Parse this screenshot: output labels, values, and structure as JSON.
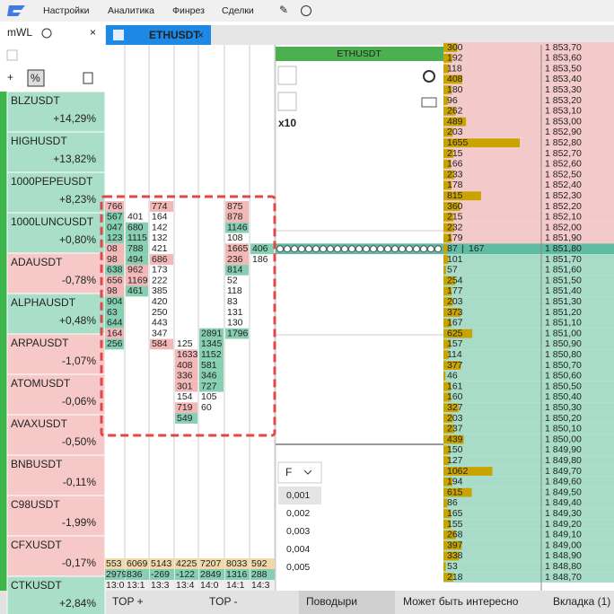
{
  "menu": {
    "items": [
      "Настройки",
      "Аналитика",
      "Финрез",
      "Сделки"
    ]
  },
  "watchlist": {
    "title": "mWL",
    "items": [
      {
        "symbol": "BLZUSDT",
        "change": "+14,29%"
      },
      {
        "symbol": "HIGHUSDT",
        "change": "+13,82%"
      },
      {
        "symbol": "1000PEPEUSDT",
        "change": "+8,23%"
      },
      {
        "symbol": "1000LUNCUSDT",
        "change": "+0,80%"
      },
      {
        "symbol": "ADAUSDT",
        "change": "-0,78%"
      },
      {
        "symbol": "ALPHAUSDT",
        "change": "+0,48%"
      },
      {
        "symbol": "ARPAUSDT",
        "change": "-1,07%"
      },
      {
        "symbol": "ATOMUSDT",
        "change": "-0,06%"
      },
      {
        "symbol": "AVAXUSDT",
        "change": "-0,50%"
      },
      {
        "symbol": "BNBUSDT",
        "change": "-0,11%"
      },
      {
        "symbol": "C98USDT",
        "change": "-1,99%"
      },
      {
        "symbol": "CFXUSDT",
        "change": "-0,17%"
      },
      {
        "symbol": "CTKUSDT",
        "change": "+2,84%"
      }
    ]
  },
  "tab": "ETHUSDT",
  "chart": {
    "title": "ETHUSDT",
    "zoom": "x10",
    "precision_mode": "F",
    "precisions": [
      "0,001",
      "0,002",
      "0,003",
      "0,004",
      "0,005"
    ]
  },
  "clusters": {
    "columns": [
      {
        "cells": [
          [
            "766",
            "sell"
          ],
          [
            "567",
            "buy"
          ],
          [
            "047",
            "buy"
          ],
          [
            "123",
            "buy"
          ],
          [
            "08",
            "sell"
          ],
          [
            "98",
            "sell"
          ],
          [
            "638",
            "buy"
          ],
          [
            "656",
            "sell"
          ],
          [
            "98",
            "sell"
          ],
          [
            "904",
            "buy"
          ],
          [
            "63",
            "buy"
          ],
          [
            "644",
            "buy"
          ],
          [
            "164",
            "sell"
          ],
          [
            "256",
            "buy"
          ]
        ]
      },
      {
        "cells": [
          [
            "401",
            "none"
          ],
          [
            "680",
            "buy"
          ],
          [
            "1115",
            "buy"
          ],
          [
            "788",
            "buy"
          ],
          [
            "494",
            "buy"
          ],
          [
            "962",
            "sell"
          ],
          [
            "1169",
            "sell"
          ],
          [
            "461",
            "buy"
          ]
        ]
      },
      {
        "cells": [
          [
            "774",
            "sell"
          ],
          [
            "164",
            "none"
          ],
          [
            "142",
            "none"
          ],
          [
            "132",
            "none"
          ],
          [
            "421",
            "none"
          ],
          [
            "686",
            "sell"
          ],
          [
            "173",
            "none"
          ],
          [
            "222",
            "none"
          ],
          [
            "385",
            "none"
          ],
          [
            "420",
            "none"
          ],
          [
            "250",
            "none"
          ],
          [
            "443",
            "none"
          ],
          [
            "347",
            "none"
          ],
          [
            "584",
            "sell"
          ]
        ]
      },
      {
        "cells": [
          [
            "125",
            "none"
          ],
          [
            "1633",
            "sell"
          ],
          [
            "408",
            "sell"
          ],
          [
            "336",
            "sell"
          ],
          [
            "301",
            "sell"
          ],
          [
            "154",
            "none"
          ],
          [
            "719",
            "sell"
          ],
          [
            "549",
            "buy"
          ]
        ]
      },
      {
        "cells": [
          [
            "2891",
            "buy"
          ],
          [
            "1345",
            "buy"
          ],
          [
            "1152",
            "buy"
          ],
          [
            "581",
            "buy"
          ],
          [
            "346",
            "buy"
          ],
          [
            "727",
            "buy"
          ],
          [
            "105",
            "none"
          ],
          [
            "60",
            "none"
          ]
        ]
      },
      {
        "cells": [
          [
            "875",
            "sell"
          ],
          [
            "878",
            "sell"
          ],
          [
            "1146",
            "buy"
          ],
          [
            "108",
            "none"
          ],
          [
            "1665",
            "sell"
          ],
          [
            "236",
            "sell"
          ],
          [
            "814",
            "buy"
          ],
          [
            "52",
            "none"
          ],
          [
            "118",
            "none"
          ],
          [
            "83",
            "none"
          ],
          [
            "131",
            "none"
          ],
          [
            "130",
            "none"
          ],
          [
            "1796",
            "buy"
          ]
        ]
      },
      {
        "cells": [
          [
            "406",
            "buy"
          ],
          [
            "186",
            "none"
          ]
        ]
      }
    ],
    "volume": [
      "553",
      "6069",
      "5143",
      "4225",
      "7207",
      "8033",
      "592"
    ],
    "delta": [
      "2979",
      "836",
      "-269",
      "-122",
      "2849",
      "1316",
      "288"
    ],
    "times": [
      "13:0",
      "13:1",
      "13:3",
      "13:4",
      "14:0",
      "14:1",
      "14:3"
    ]
  },
  "order_book": {
    "rows": [
      {
        "volume": 300,
        "price": "1 853,70",
        "side": "ask"
      },
      {
        "volume": 192,
        "price": "1 853,60",
        "side": "ask"
      },
      {
        "volume": 118,
        "price": "1 853,50",
        "side": "ask"
      },
      {
        "volume": 408,
        "price": "1 853,40",
        "side": "ask"
      },
      {
        "volume": 180,
        "price": "1 853,30",
        "side": "ask"
      },
      {
        "volume": 96,
        "price": "1 853,20",
        "side": "ask"
      },
      {
        "volume": 262,
        "price": "1 853,10",
        "side": "ask"
      },
      {
        "volume": 489,
        "price": "1 853,00",
        "side": "ask"
      },
      {
        "volume": 203,
        "price": "1 852,90",
        "side": "ask"
      },
      {
        "volume": 1655,
        "price": "1 852,80",
        "side": "ask"
      },
      {
        "volume": 215,
        "price": "1 852,70",
        "side": "ask"
      },
      {
        "volume": 166,
        "price": "1 852,60",
        "side": "ask"
      },
      {
        "volume": 233,
        "price": "1 852,50",
        "side": "ask"
      },
      {
        "volume": 178,
        "price": "1 852,40",
        "side": "ask"
      },
      {
        "volume": 815,
        "price": "1 852,30",
        "side": "ask"
      },
      {
        "volume": 360,
        "price": "1 852,20",
        "side": "ask"
      },
      {
        "volume": 215,
        "price": "1 852,10",
        "side": "ask"
      },
      {
        "volume": 232,
        "price": "1 852,00",
        "side": "ask"
      },
      {
        "volume": 179,
        "price": "1 851,90",
        "side": "ask"
      },
      {
        "volume": 87,
        "volume2": 167,
        "price": "1 851,80",
        "side": "last"
      },
      {
        "volume": 101,
        "price": "1 851,70",
        "side": "bid"
      },
      {
        "volume": 57,
        "price": "1 851,60",
        "side": "bid"
      },
      {
        "volume": 254,
        "price": "1 851,50",
        "side": "bid"
      },
      {
        "volume": 177,
        "price": "1 851,40",
        "side": "bid"
      },
      {
        "volume": 203,
        "price": "1 851,30",
        "side": "bid"
      },
      {
        "volume": 373,
        "price": "1 851,20",
        "side": "bid"
      },
      {
        "volume": 167,
        "price": "1 851,10",
        "side": "bid"
      },
      {
        "volume": 625,
        "price": "1 851,00",
        "side": "bid"
      },
      {
        "volume": 157,
        "price": "1 850,90",
        "side": "bid"
      },
      {
        "volume": 114,
        "price": "1 850,80",
        "side": "bid"
      },
      {
        "volume": 377,
        "price": "1 850,70",
        "side": "bid"
      },
      {
        "volume": 46,
        "price": "1 850,60",
        "side": "bid"
      },
      {
        "volume": 161,
        "price": "1 850,50",
        "side": "bid"
      },
      {
        "volume": 160,
        "price": "1 850,40",
        "side": "bid"
      },
      {
        "volume": 327,
        "price": "1 850,30",
        "side": "bid"
      },
      {
        "volume": 203,
        "price": "1 850,20",
        "side": "bid"
      },
      {
        "volume": 237,
        "price": "1 850,10",
        "side": "bid"
      },
      {
        "volume": 439,
        "price": "1 850,00",
        "side": "bid"
      },
      {
        "volume": 150,
        "price": "1 849,90",
        "side": "bid"
      },
      {
        "volume": 127,
        "price": "1 849,80",
        "side": "bid"
      },
      {
        "volume": 1062,
        "price": "1 849,70",
        "side": "bid"
      },
      {
        "volume": 194,
        "price": "1 849,60",
        "side": "bid"
      },
      {
        "volume": 615,
        "price": "1 849,50",
        "side": "bid"
      },
      {
        "volume": 86,
        "price": "1 849,40",
        "side": "bid"
      },
      {
        "volume": 165,
        "price": "1 849,30",
        "side": "bid"
      },
      {
        "volume": 155,
        "price": "1 849,20",
        "side": "bid"
      },
      {
        "volume": 268,
        "price": "1 849,10",
        "side": "bid"
      },
      {
        "volume": 397,
        "price": "1 849,00",
        "side": "bid"
      },
      {
        "volume": 338,
        "price": "1 848,90",
        "side": "bid"
      },
      {
        "volume": 53,
        "price": "1 848,80",
        "side": "bid"
      },
      {
        "volume": 218,
        "price": "1 848,70",
        "side": "bid"
      }
    ]
  },
  "footer": {
    "tabs": [
      "TOP +",
      "TOP -",
      "Поводыри",
      "Может быть интересно",
      "Вкладка (1)"
    ]
  }
}
